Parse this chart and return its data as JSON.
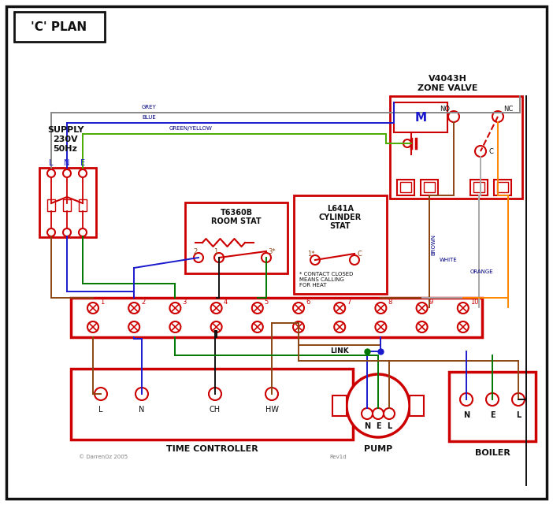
{
  "bg": "#ffffff",
  "red": "#cc0000",
  "blue": "#1a1acc",
  "green": "#007700",
  "grey": "#888888",
  "black": "#111111",
  "brown": "#8B4513",
  "orange": "#FF8800",
  "gy": "#4aaa00",
  "white_w": "#aaaaaa",
  "title": "'C' PLAN",
  "zone_title1": "V4043H",
  "zone_title2": "ZONE VALVE",
  "room_stat1": "T6360B",
  "room_stat2": "ROOM STAT",
  "cyl_stat1": "L641A",
  "cyl_stat2": "CYLINDER",
  "cyl_stat3": "STAT",
  "tc_title": "TIME CONTROLLER",
  "pump_title": "PUMP",
  "boiler_title": "BOILER",
  "note": "* CONTACT CLOSED\nMEANS CALLING\nFOR HEAT",
  "copyright": "© DarrenOz 2005",
  "rev": "Rev1d"
}
